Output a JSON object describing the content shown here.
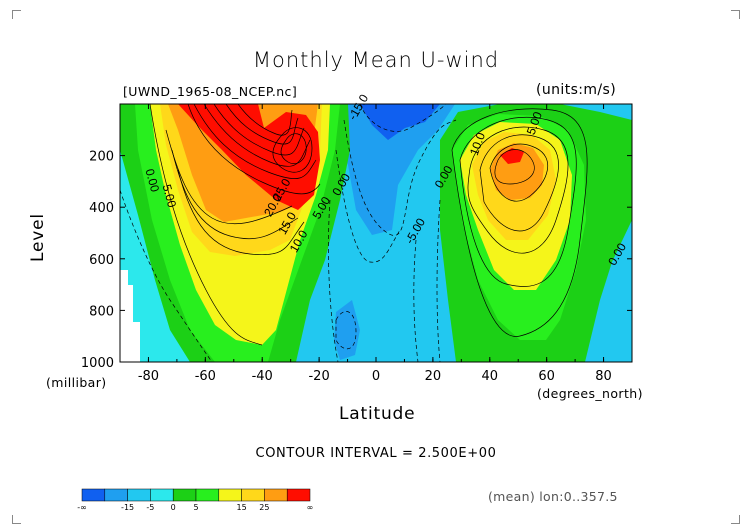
{
  "title": "Monthly Mean U-wind",
  "file_label": "[UWND_1965-08_NCEP.nc]",
  "units_label": "(units:m/s)",
  "x_axis": {
    "label": "Latitude",
    "units": "(degrees_north)",
    "ticks": [
      "-80",
      "-60",
      "-40",
      "-20",
      "0",
      "20",
      "40",
      "60",
      "80"
    ]
  },
  "y_axis": {
    "label": "Level",
    "units": "(millibar)",
    "ticks": [
      "200",
      "400",
      "600",
      "800",
      "1000"
    ]
  },
  "contour_interval_text": "CONTOUR INTERVAL = 2.500E+00",
  "mean_text": "(mean) lon:0..357.5",
  "colorbar": {
    "colors": [
      "#1060f0",
      "#1f9ff0",
      "#22c8f0",
      "#2ce8ec",
      "#1cd016",
      "#28ef1e",
      "#f5f51a",
      "#ffd81a",
      "#ff9d12",
      "#ff0d00"
    ],
    "labels": [
      "-∞",
      "-15",
      "-5",
      "0",
      "5",
      "15",
      "25",
      "∞"
    ]
  },
  "chart_data": {
    "type": "contour",
    "variable": "U-wind",
    "units": "m/s",
    "xlim": [
      -90,
      90
    ],
    "ylim": [
      1000,
      0
    ],
    "contour_interval": 2.5,
    "contour_labels": [
      {
        "text": "0.00",
        "lat": -80,
        "lev": 300
      },
      {
        "text": "5.00",
        "lat": -74,
        "lev": 360
      },
      {
        "text": "20.0",
        "lat": -35,
        "lev": 400
      },
      {
        "text": "25.0",
        "lat": -32,
        "lev": 340
      },
      {
        "text": "15.0",
        "lat": -30,
        "lev": 470
      },
      {
        "text": "10.0",
        "lat": -26,
        "lev": 540
      },
      {
        "text": "5.00",
        "lat": -18,
        "lev": 410
      },
      {
        "text": "0.00",
        "lat": -11,
        "lev": 320
      },
      {
        "text": "-5.00",
        "lat": 15,
        "lev": 500
      },
      {
        "text": "-15.0",
        "lat": -5,
        "lev": 20
      },
      {
        "text": "0.00",
        "lat": 25,
        "lev": 290
      },
      {
        "text": "10.0",
        "lat": 37,
        "lev": 160
      },
      {
        "text": "5.00",
        "lat": 57,
        "lev": 80
      },
      {
        "text": "0.00",
        "lat": 86,
        "lev": 590
      }
    ],
    "features": [
      {
        "name": "southern subtropical jet core",
        "lat": -28,
        "lev": 200,
        "max": 30
      },
      {
        "name": "northern jet core",
        "lat": 48,
        "lev": 200,
        "max": 25
      },
      {
        "name": "tropical easterlies",
        "lat": 5,
        "lev": 100,
        "min": -20
      }
    ]
  }
}
